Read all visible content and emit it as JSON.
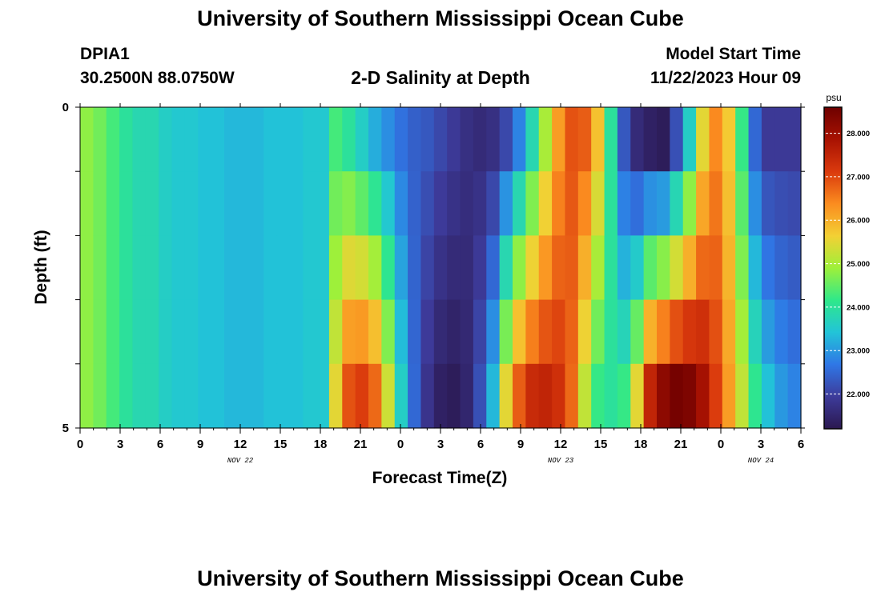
{
  "title": "University of Southern Mississippi Ocean Cube",
  "title_repeat": "University of Southern Mississippi Ocean Cube",
  "station": {
    "id": "DPIA1",
    "coords": "30.2500N  88.0750W"
  },
  "plot_title": "2-D Salinity at Depth",
  "model_start": {
    "label": "Model Start Time",
    "value": "11/22/2023 Hour 09"
  },
  "chart_data": {
    "type": "heatmap",
    "title": "2-D Salinity at Depth",
    "xlabel": "Forecast Time(Z)",
    "ylabel": "Depth (ft)",
    "x_tick_labels": [
      "0",
      "3",
      "6",
      "9",
      "12",
      "15",
      "18",
      "21",
      "0",
      "3",
      "6",
      "9",
      "12",
      "15",
      "18",
      "21",
      "0",
      "3",
      "6"
    ],
    "date_labels": [
      {
        "text": "NOV 22",
        "hour": 12
      },
      {
        "text": "NOV 23",
        "hour": 36
      },
      {
        "text": "NOV 24",
        "hour": 51
      }
    ],
    "x_range_hours": [
      0,
      54
    ],
    "y_tick_labels": [
      "0",
      "5"
    ],
    "y_range_ft": [
      0,
      5
    ],
    "depth_layers": 5,
    "colorbar": {
      "unit": "psu",
      "range": [
        21.2,
        28.6
      ],
      "tick_labels": [
        "22.000",
        "23.000",
        "24.000",
        "25.000",
        "26.000",
        "27.000",
        "28.000"
      ],
      "tick_values": [
        22,
        23,
        24,
        25,
        26,
        27,
        28
      ],
      "colors": [
        "#2b1850",
        "#3d3b9a",
        "#2f77e6",
        "#22c4d8",
        "#2fe88a",
        "#9ef03a",
        "#f3d034",
        "#fb8c1f",
        "#da3a0d",
        "#a81202",
        "#6e0000"
      ]
    },
    "surface_salinity": [
      24.8,
      24.6,
      24.3,
      24.0,
      23.8,
      23.8,
      23.6,
      23.5,
      23.5,
      23.4,
      23.4,
      23.3,
      23.3,
      23.3,
      23.4,
      23.4,
      23.4,
      23.5,
      23.5,
      24.3,
      24.0,
      23.6,
      23.2,
      22.9,
      22.6,
      22.4,
      22.3,
      22.1,
      21.9,
      21.7,
      21.6,
      21.7,
      22.1,
      22.8,
      23.8,
      25.0,
      26.2,
      26.9,
      26.8,
      25.8,
      24.0,
      22.3,
      21.6,
      21.4,
      21.3,
      22.2,
      23.6,
      25.5,
      26.4,
      25.7,
      24.2,
      22.5,
      21.9,
      21.9,
      21.9
    ],
    "bottom_salinity": [
      24.8,
      24.6,
      24.3,
      24.0,
      23.8,
      23.8,
      23.6,
      23.5,
      23.5,
      23.4,
      23.4,
      23.3,
      23.3,
      23.3,
      23.4,
      23.4,
      23.4,
      23.5,
      23.5,
      25.5,
      26.9,
      27.1,
      26.7,
      25.3,
      23.6,
      22.5,
      21.8,
      21.4,
      21.3,
      21.5,
      22.2,
      23.3,
      25.5,
      26.8,
      27.4,
      27.5,
      27.3,
      26.7,
      25.2,
      24.2,
      24.0,
      24.2,
      25.5,
      27.5,
      28.2,
      28.5,
      28.4,
      27.9,
      27.1,
      26.2,
      25.2,
      24.1,
      23.4,
      23.0,
      22.8
    ]
  }
}
